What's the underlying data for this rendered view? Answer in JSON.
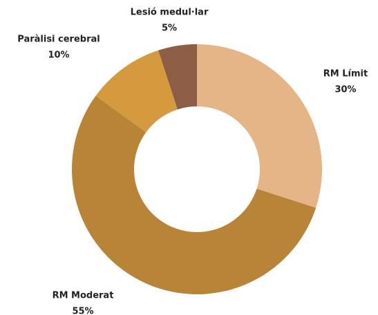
{
  "chart_data": {
    "type": "donut",
    "categories": [
      "RM Límit",
      "RM Moderat",
      "Paràlisi cerebral",
      "Lesió medul·lar"
    ],
    "values": [
      30,
      55,
      10,
      5
    ],
    "value_labels": [
      "30%",
      "55%",
      "10%",
      "5%"
    ],
    "colors": [
      "#e3b587",
      "#b78535",
      "#d49a3d",
      "#8e5d45"
    ]
  }
}
